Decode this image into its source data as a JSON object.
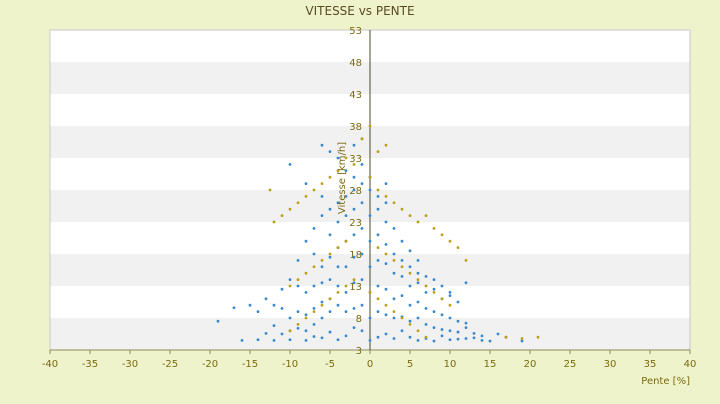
{
  "chart_data": {
    "type": "scatter",
    "title": "VITESSE vs PENTE",
    "xlabel": "Pente [%]",
    "ylabel": "Vitesse [km/h]",
    "xlim": [
      -40,
      40
    ],
    "ylim": [
      3,
      53
    ],
    "x_ticks": [
      -40,
      -35,
      -30,
      -25,
      -20,
      -15,
      -10,
      -5,
      0,
      5,
      10,
      15,
      20,
      25,
      30,
      35,
      40
    ],
    "y_ticks": [
      3,
      8,
      13,
      18,
      23,
      28,
      33,
      38,
      43,
      48,
      53
    ],
    "grid": "horizontal-bands",
    "legend": "none",
    "colors": {
      "background": "#eef3cc",
      "plot_band_light": "#ffffff",
      "plot_band_dark": "#f1f1f1",
      "axis_text": "#7a6a10",
      "title_text": "#5a4a20",
      "series_a": "#3a87cf",
      "series_b": "#b8a118"
    },
    "series": [
      {
        "name": "",
        "color": "#3a87cf",
        "points": [
          [
            0,
            4.5
          ],
          [
            1,
            5
          ],
          [
            -1,
            6
          ],
          [
            2,
            5.5
          ],
          [
            -2,
            6.5
          ],
          [
            3,
            4.8
          ],
          [
            -3,
            5.2
          ],
          [
            4,
            6
          ],
          [
            -4,
            4.6
          ],
          [
            5,
            5
          ],
          [
            6,
            4.5
          ],
          [
            -5,
            5.8
          ],
          [
            7,
            4.8
          ],
          [
            8,
            4.4
          ],
          [
            -6,
            4.9
          ],
          [
            9,
            5.2
          ],
          [
            10,
            4.6
          ],
          [
            -7,
            5.1
          ],
          [
            11,
            4.7
          ],
          [
            12,
            4.8
          ],
          [
            -8,
            4.5
          ],
          [
            13,
            4.9
          ],
          [
            14,
            4.5
          ],
          [
            -10,
            4.6
          ],
          [
            15,
            4.4
          ],
          [
            -12,
            4.5
          ],
          [
            -14,
            4.6
          ],
          [
            17,
            5
          ],
          [
            -16,
            4.5
          ],
          [
            19,
            4.4
          ],
          [
            0,
            8
          ],
          [
            1,
            9
          ],
          [
            -1,
            10
          ],
          [
            2,
            8.5
          ],
          [
            -2,
            9.5
          ],
          [
            3,
            8
          ],
          [
            -3,
            9
          ],
          [
            4,
            8.2
          ],
          [
            -4,
            10
          ],
          [
            5,
            7.5
          ],
          [
            6,
            8
          ],
          [
            -5,
            9
          ],
          [
            7,
            7
          ],
          [
            8,
            6.5
          ],
          [
            -6,
            8
          ],
          [
            9,
            6.2
          ],
          [
            10,
            6
          ],
          [
            -7,
            7
          ],
          [
            11,
            5.8
          ],
          [
            12,
            6.5
          ],
          [
            -8,
            6
          ],
          [
            13,
            5.6
          ],
          [
            14,
            5.2
          ],
          [
            -9,
            6.4
          ],
          [
            -10,
            6
          ],
          [
            -11,
            5.5
          ],
          [
            16,
            5.5
          ],
          [
            -12,
            6.8
          ],
          [
            -13,
            5.6
          ],
          [
            0,
            12
          ],
          [
            1,
            13
          ],
          [
            -1,
            14
          ],
          [
            2,
            12.5
          ],
          [
            -2,
            13.5
          ],
          [
            3,
            11
          ],
          [
            -3,
            12
          ],
          [
            4,
            11.5
          ],
          [
            -4,
            13
          ],
          [
            5,
            10
          ],
          [
            6,
            10.5
          ],
          [
            -5,
            11
          ],
          [
            7,
            9.5
          ],
          [
            8,
            9
          ],
          [
            -6,
            10.5
          ],
          [
            9,
            8.5
          ],
          [
            10,
            8
          ],
          [
            -7,
            9.5
          ],
          [
            11,
            7.5
          ],
          [
            12,
            7.2
          ],
          [
            -8,
            8.5
          ],
          [
            -9,
            9
          ],
          [
            -10,
            8
          ],
          [
            -11,
            9.5
          ],
          [
            -12,
            10
          ],
          [
            -13,
            11
          ],
          [
            -14,
            9
          ],
          [
            -15,
            10
          ],
          [
            -17,
            9.6
          ],
          [
            -19,
            7.5
          ],
          [
            0,
            16
          ],
          [
            1,
            17
          ],
          [
            -1,
            18
          ],
          [
            2,
            16.5
          ],
          [
            -2,
            17.5
          ],
          [
            3,
            15
          ],
          [
            -3,
            16
          ],
          [
            4,
            14.5
          ],
          [
            -4,
            16
          ],
          [
            5,
            13
          ],
          [
            6,
            13.5
          ],
          [
            -5,
            14
          ],
          [
            7,
            12
          ],
          [
            8,
            12.5
          ],
          [
            -6,
            13.5
          ],
          [
            9,
            11
          ],
          [
            10,
            11.5
          ],
          [
            -7,
            13
          ],
          [
            11,
            10.5
          ],
          [
            12,
            13.5
          ],
          [
            -8,
            12
          ],
          [
            -9,
            13
          ],
          [
            -10,
            14
          ],
          [
            -11,
            12.5
          ],
          [
            0,
            20
          ],
          [
            1,
            21
          ],
          [
            -1,
            22
          ],
          [
            2,
            19.5
          ],
          [
            -2,
            21
          ],
          [
            3,
            18
          ],
          [
            -3,
            20
          ],
          [
            4,
            17
          ],
          [
            -4,
            19
          ],
          [
            5,
            16
          ],
          [
            6,
            15
          ],
          [
            -5,
            17.5
          ],
          [
            7,
            14.5
          ],
          [
            8,
            14
          ],
          [
            -6,
            16
          ],
          [
            9,
            13
          ],
          [
            10,
            12
          ],
          [
            -7,
            18
          ],
          [
            -8,
            20
          ],
          [
            -9,
            17
          ],
          [
            0,
            24
          ],
          [
            1,
            25
          ],
          [
            -1,
            26
          ],
          [
            2,
            23
          ],
          [
            -2,
            25
          ],
          [
            3,
            22
          ],
          [
            -3,
            24
          ],
          [
            4,
            20
          ],
          [
            -4,
            23
          ],
          [
            5,
            18.5
          ],
          [
            6,
            17
          ],
          [
            -5,
            21
          ],
          [
            -6,
            24
          ],
          [
            -7,
            22
          ],
          [
            0,
            28
          ],
          [
            1,
            27
          ],
          [
            -1,
            29
          ],
          [
            2,
            26
          ],
          [
            -2,
            28
          ],
          [
            -3,
            27
          ],
          [
            -4,
            26
          ],
          [
            -5,
            25
          ],
          [
            -6,
            27
          ],
          [
            -1,
            32
          ],
          [
            -3,
            31
          ],
          [
            -4,
            33
          ],
          [
            -5,
            34
          ],
          [
            -6,
            35
          ],
          [
            -10,
            32
          ],
          [
            -8,
            29
          ],
          [
            0,
            30
          ],
          [
            -2,
            30
          ],
          [
            2,
            29
          ],
          [
            -1,
            36
          ],
          [
            -2,
            35
          ]
        ]
      },
      {
        "name": "",
        "color": "#b8a118",
        "points": [
          [
            0,
            38
          ],
          [
            -1,
            36
          ],
          [
            2,
            35
          ],
          [
            1,
            34
          ],
          [
            -3,
            33
          ],
          [
            -2,
            32
          ],
          [
            -4,
            31
          ],
          [
            -5,
            30
          ],
          [
            0,
            30
          ],
          [
            -6,
            29
          ],
          [
            -7,
            28
          ],
          [
            -8,
            27
          ],
          [
            -9,
            26
          ],
          [
            -10,
            25
          ],
          [
            -11,
            24
          ],
          [
            -12,
            23
          ],
          [
            -12.5,
            28
          ],
          [
            1,
            28
          ],
          [
            2,
            27
          ],
          [
            3,
            26
          ],
          [
            4,
            25
          ],
          [
            5,
            24
          ],
          [
            6,
            23
          ],
          [
            7,
            24
          ],
          [
            8,
            22
          ],
          [
            9,
            21
          ],
          [
            10,
            20
          ],
          [
            11,
            19
          ],
          [
            12,
            17
          ],
          [
            -3,
            20
          ],
          [
            -4,
            19
          ],
          [
            -5,
            18
          ],
          [
            -6,
            17
          ],
          [
            -7,
            16
          ],
          [
            -8,
            15
          ],
          [
            -9,
            14
          ],
          [
            -10,
            13
          ],
          [
            1,
            19
          ],
          [
            2,
            18
          ],
          [
            3,
            17
          ],
          [
            4,
            16
          ],
          [
            5,
            15
          ],
          [
            6,
            14
          ],
          [
            7,
            13
          ],
          [
            8,
            12
          ],
          [
            9,
            11
          ],
          [
            10,
            10
          ],
          [
            -2,
            14
          ],
          [
            -3,
            13
          ],
          [
            -4,
            12
          ],
          [
            -5,
            11
          ],
          [
            -6,
            10
          ],
          [
            -7,
            9
          ],
          [
            -8,
            8
          ],
          [
            -9,
            7
          ],
          [
            -10,
            6
          ],
          [
            0,
            12
          ],
          [
            1,
            11
          ],
          [
            2,
            10
          ],
          [
            3,
            9
          ],
          [
            4,
            8
          ],
          [
            5,
            7
          ],
          [
            6,
            6
          ],
          [
            7,
            5
          ],
          [
            17,
            5
          ],
          [
            19,
            4.8
          ],
          [
            21,
            5
          ]
        ]
      }
    ]
  }
}
